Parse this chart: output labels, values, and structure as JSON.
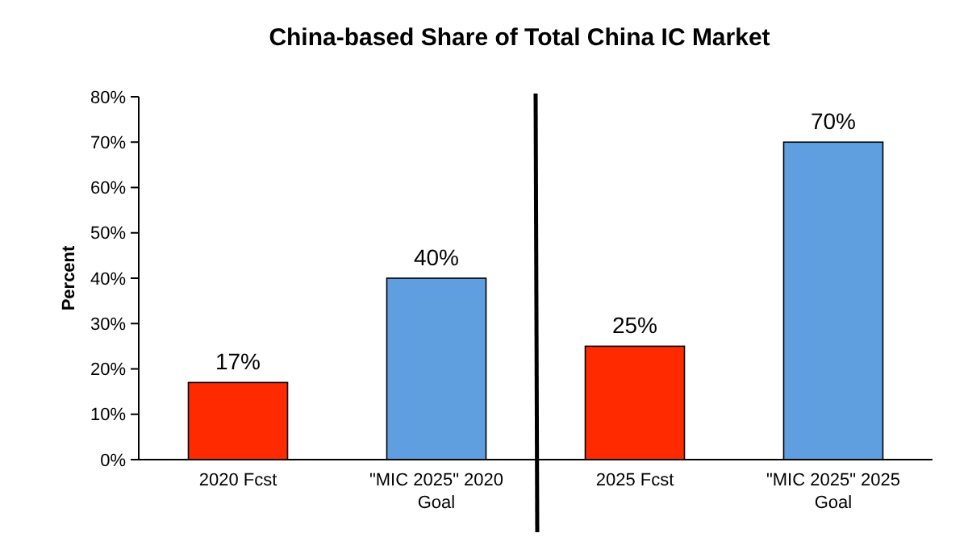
{
  "chart_data": {
    "type": "bar",
    "title": "China-based Share of Total China IC Market",
    "ylabel": "Percent",
    "categories": [
      "2020 Fcst",
      "\"MIC 2025\" 2020 Goal",
      "2025 Fcst",
      "\"MIC 2025\" 2025 Goal"
    ],
    "values": [
      17,
      40,
      25,
      70
    ],
    "colors": [
      "#ff2a00",
      "#5f9fdf",
      "#ff2a00",
      "#5f9fdf"
    ],
    "value_labels": [
      "17%",
      "40%",
      "25%",
      "70%"
    ],
    "ylim": [
      0,
      80
    ],
    "yticks": [
      {
        "value": 0,
        "label": "0%"
      },
      {
        "value": 10,
        "label": "10%"
      },
      {
        "value": 20,
        "label": "20%"
      },
      {
        "value": 30,
        "label": "30%"
      },
      {
        "value": 40,
        "label": "40%"
      },
      {
        "value": 50,
        "label": "50%"
      },
      {
        "value": 60,
        "label": "60%"
      },
      {
        "value": 70,
        "label": "70%"
      },
      {
        "value": 80,
        "label": "80%"
      }
    ],
    "grid": false
  }
}
